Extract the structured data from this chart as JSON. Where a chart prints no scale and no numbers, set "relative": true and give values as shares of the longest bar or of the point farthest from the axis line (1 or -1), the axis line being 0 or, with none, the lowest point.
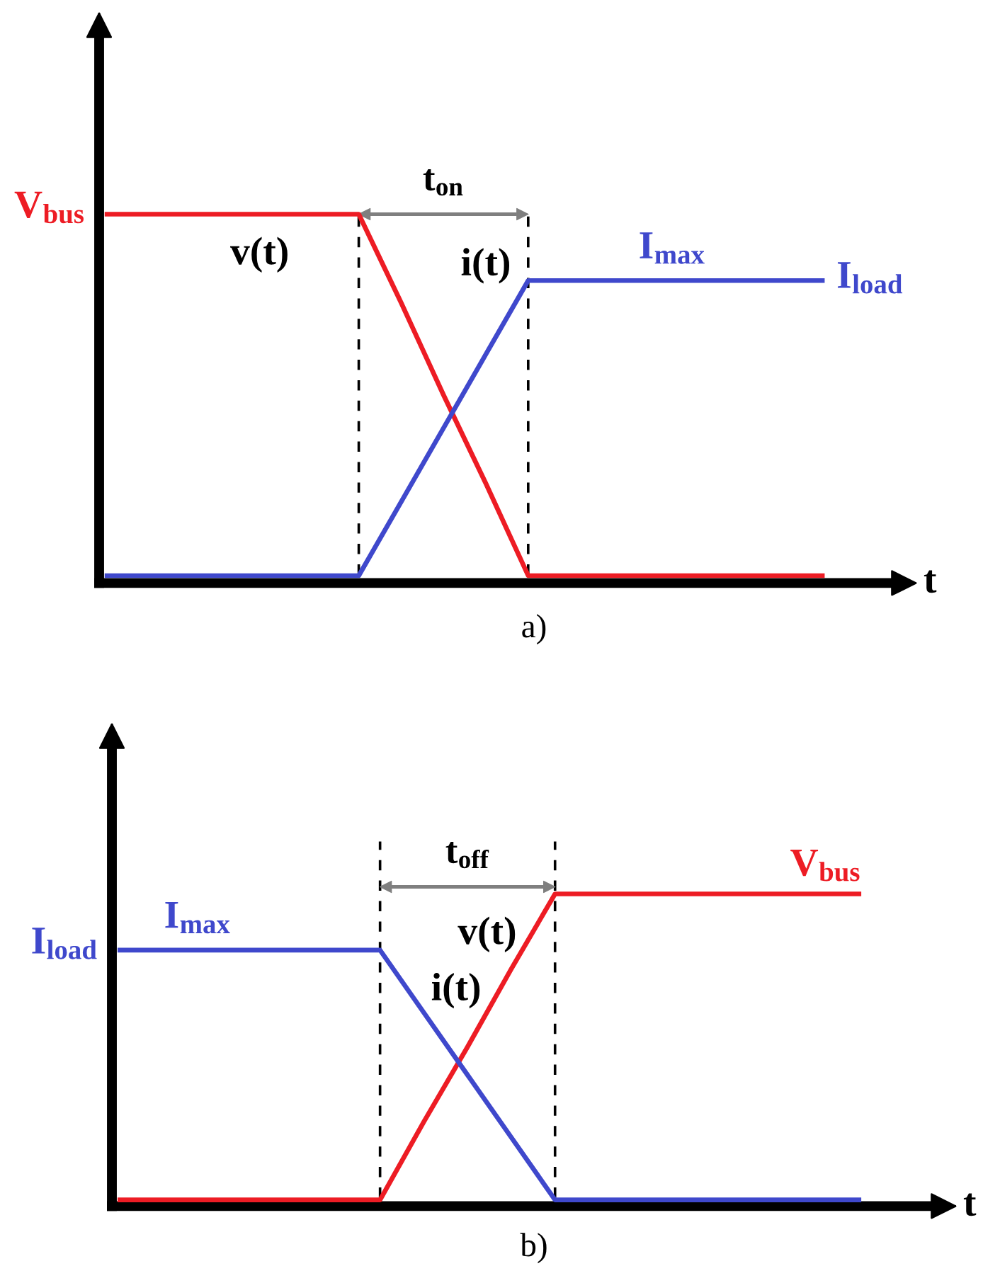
{
  "chart_data": [
    {
      "type": "line",
      "title": "a)",
      "xlabel": "t",
      "relative": true,
      "categories": [
        null,
        null,
        null,
        null,
        null,
        null,
        null,
        null,
        null,
        null,
        null,
        null,
        null,
        null,
        null,
        null,
        null,
        null
      ],
      "series": [
        {
          "name": "v(t)",
          "color": "#ed1c24",
          "values": [
            1,
            1,
            1,
            1,
            1,
            1,
            1,
            0.76,
            0.51,
            0.27,
            0.02,
            0.02,
            0.02,
            0.02,
            0.02,
            0.02,
            0.02,
            0.02
          ]
        },
        {
          "name": "i(t)",
          "color": "#3f48cc",
          "values": [
            0.02,
            0.02,
            0.02,
            0.02,
            0.02,
            0.02,
            0.02,
            0.22,
            0.42,
            0.62,
            0.82,
            0.82,
            0.82,
            0.82,
            0.82,
            0.82,
            0.82,
            0.82
          ]
        }
      ],
      "annotations": [
        "t$_{on}$",
        "V$_{bus}$",
        "I$_{max}$",
        "I$_{load}$"
      ]
    },
    {
      "type": "line",
      "title": "b)",
      "xlabel": "t",
      "relative": true,
      "categories": [
        null,
        null,
        null,
        null,
        null,
        null,
        null,
        null,
        null,
        null,
        null,
        null,
        null,
        null,
        null,
        null,
        null,
        null
      ],
      "series": [
        {
          "name": "v(t)",
          "color": "#ed1c24",
          "values": [
            0.02,
            0.02,
            0.02,
            0.02,
            0.02,
            0.02,
            0.02,
            0.27,
            0.51,
            0.76,
            1,
            1,
            1,
            1,
            1,
            1,
            1,
            1
          ]
        },
        {
          "name": "i(t)",
          "color": "#3f48cc",
          "values": [
            0.82,
            0.82,
            0.82,
            0.82,
            0.82,
            0.82,
            0.82,
            0.62,
            0.42,
            0.22,
            0.02,
            0.02,
            0.02,
            0.02,
            0.02,
            0.02,
            0.02,
            0.02
          ]
        }
      ],
      "annotations": [
        "t$_{off}$",
        "V$_{bus}$",
        "I$_{max}$",
        "I$_{load}$"
      ]
    }
  ]
}
